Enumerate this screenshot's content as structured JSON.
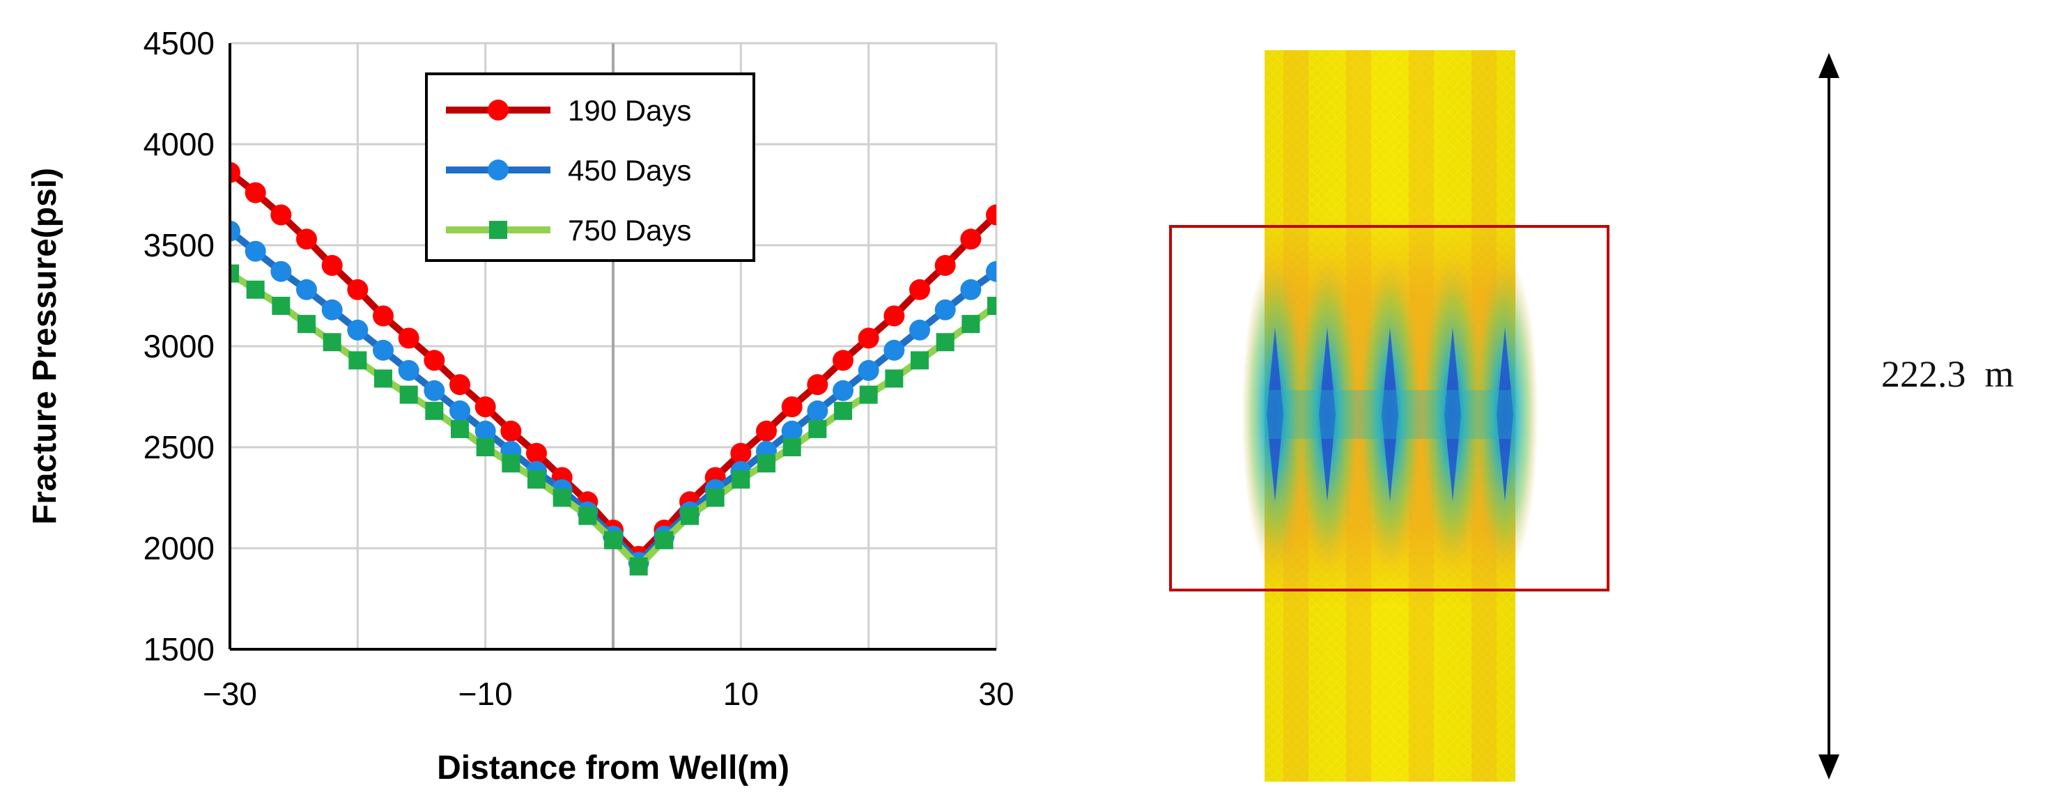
{
  "chart_data": {
    "type": "line",
    "title": "",
    "xlabel": "Distance from Well(m)",
    "ylabel": "Fracture Pressure(psi)",
    "xlim": [
      -30,
      30
    ],
    "ylim": [
      1500,
      4500
    ],
    "xticks": [
      -30,
      -10,
      10,
      30
    ],
    "xtick_labels": [
      "−30",
      "−10",
      "10",
      "30"
    ],
    "yticks": [
      1500,
      2000,
      2500,
      3000,
      3500,
      4000,
      4500
    ],
    "grid": true,
    "legend_position": "top-center",
    "series": [
      {
        "name": "190 Days",
        "color": "#ff0000",
        "line_color": "#c00000",
        "marker": "circle",
        "x": [
          -30,
          -28,
          -26,
          -24,
          -22,
          -20,
          -18,
          -16,
          -14,
          -12,
          -10,
          -8,
          -6,
          -4,
          -2,
          0,
          2,
          4,
          6,
          8,
          10,
          12,
          14,
          16,
          18,
          20,
          22,
          24,
          26,
          28,
          30
        ],
        "values": [
          3860,
          3760,
          3650,
          3530,
          3400,
          3280,
          3150,
          3040,
          2930,
          2810,
          2700,
          2580,
          2470,
          2350,
          2230,
          2090,
          1960,
          2090,
          2230,
          2350,
          2470,
          2580,
          2700,
          2810,
          2930,
          3040,
          3150,
          3280,
          3400,
          3530,
          3650
        ]
      },
      {
        "name": "450 Days",
        "color": "#1e88e5",
        "line_color": "#1f6fc5",
        "marker": "circle",
        "x": [
          -30,
          -28,
          -26,
          -24,
          -22,
          -20,
          -18,
          -16,
          -14,
          -12,
          -10,
          -8,
          -6,
          -4,
          -2,
          0,
          2,
          4,
          6,
          8,
          10,
          12,
          14,
          16,
          18,
          20,
          22,
          24,
          26,
          28,
          30
        ],
        "values": [
          3570,
          3470,
          3370,
          3280,
          3180,
          3080,
          2980,
          2880,
          2780,
          2680,
          2580,
          2480,
          2380,
          2290,
          2180,
          2060,
          1930,
          2060,
          2180,
          2290,
          2380,
          2480,
          2580,
          2680,
          2780,
          2880,
          2980,
          3080,
          3180,
          3280,
          3370
        ]
      },
      {
        "name": "750 Days",
        "color": "#1aa84a",
        "line_color": "#92d050",
        "marker": "square",
        "x": [
          -30,
          -28,
          -26,
          -24,
          -22,
          -20,
          -18,
          -16,
          -14,
          -12,
          -10,
          -8,
          -6,
          -4,
          -2,
          0,
          2,
          4,
          6,
          8,
          10,
          12,
          14,
          16,
          18,
          20,
          22,
          24,
          26,
          28,
          30
        ],
        "values": [
          3360,
          3280,
          3200,
          3110,
          3020,
          2930,
          2840,
          2760,
          2680,
          2590,
          2500,
          2420,
          2340,
          2250,
          2160,
          2040,
          1910,
          2040,
          2160,
          2250,
          2340,
          2420,
          2500,
          2590,
          2680,
          2760,
          2840,
          2930,
          3020,
          3110,
          3200
        ]
      }
    ]
  },
  "simulation_panel": {
    "dimension_label": "222.3  m",
    "highlight_box_color": "#c00000",
    "field_colors": [
      "#f2e600",
      "#f0a020",
      "#1f5fd6",
      "#22b5c8"
    ]
  }
}
